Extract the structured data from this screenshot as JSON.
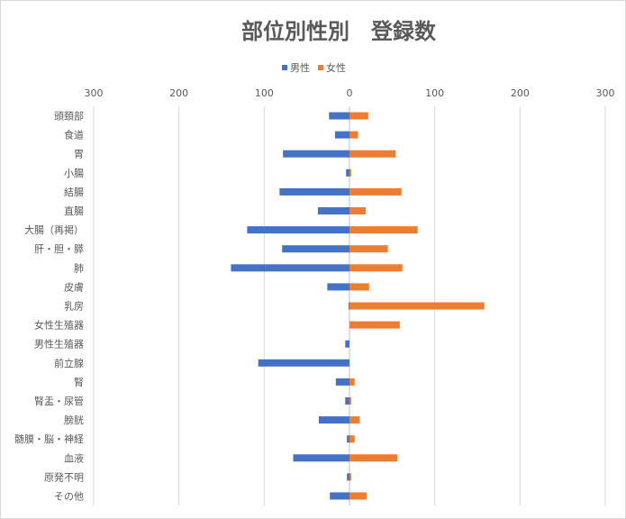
{
  "chart_data": {
    "type": "bar",
    "orientation": "horizontal",
    "title": "部位別性別　登録数",
    "legend_position": "top",
    "grid": true,
    "xlim": [
      -300,
      300
    ],
    "x_ticks": [
      -300,
      -200,
      -100,
      0,
      100,
      200,
      300
    ],
    "x_tick_labels": [
      "300",
      "200",
      "100",
      "0",
      "100",
      "200",
      "300"
    ],
    "categories": [
      "頭頚部",
      "食道",
      "胃",
      "小腸",
      "結腸",
      "直腸",
      "大腸（再掲）",
      "肝・胆・膵",
      "肺",
      "皮膚",
      "乳房",
      "女性生殖器",
      "男性生殖器",
      "前立腺",
      "腎",
      "腎盂・尿管",
      "膀胱",
      "髄膜・脳・神経",
      "血液",
      "原発不明",
      "その他"
    ],
    "series": [
      {
        "name": "男性",
        "color": "#4472c4",
        "values": [
          -24,
          -17,
          -78,
          -4,
          -82,
          -37,
          -120,
          -79,
          -139,
          -26,
          -1,
          0,
          -5,
          -107,
          -16,
          -5,
          -36,
          -3,
          -66,
          -3,
          -23
        ]
      },
      {
        "name": "女性",
        "color": "#ed7d31",
        "values": [
          22,
          10,
          54,
          2,
          61,
          19,
          80,
          45,
          62,
          23,
          158,
          59,
          0,
          0,
          6,
          2,
          12,
          6,
          56,
          2,
          20
        ]
      }
    ]
  }
}
